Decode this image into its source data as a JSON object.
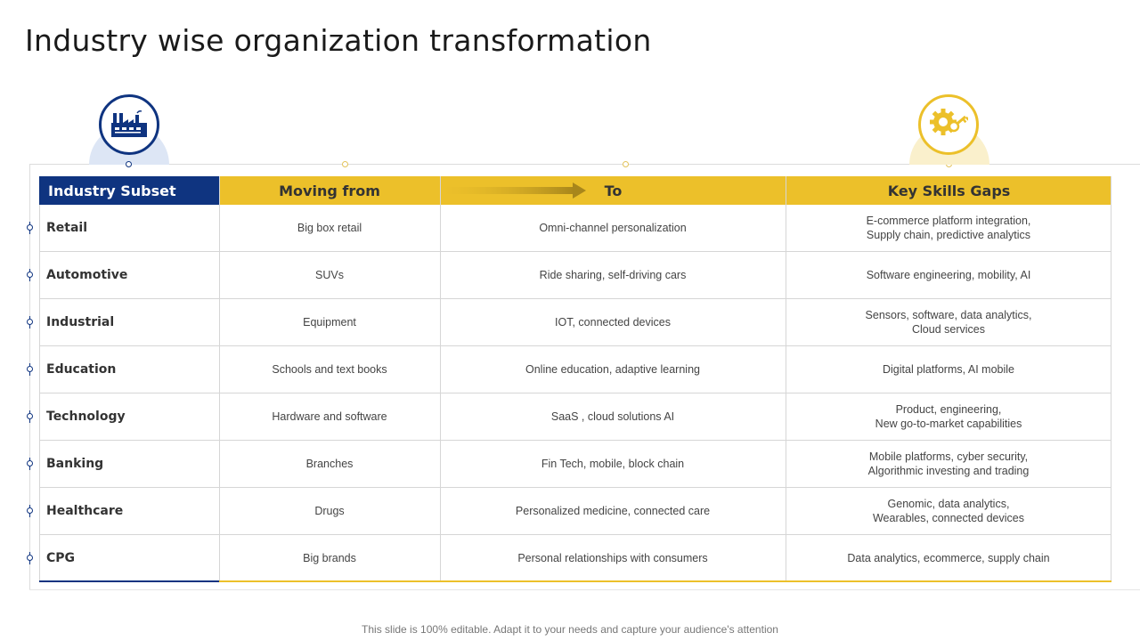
{
  "title": "Industry wise organization transformation",
  "headers": {
    "industry": "Industry Subset",
    "from": "Moving from",
    "to": "To",
    "skills": "Key Skills Gaps"
  },
  "rows": [
    {
      "industry": "Retail",
      "from": "Big box retail",
      "to": "Omni-channel personalization",
      "skills": "E-commerce platform integration,\nSupply chain, predictive analytics"
    },
    {
      "industry": "Automotive",
      "from": "SUVs",
      "to": "Ride sharing, self-driving cars",
      "skills": "Software engineering, mobility, AI"
    },
    {
      "industry": "Industrial",
      "from": "Equipment",
      "to": "IOT, connected devices",
      "skills": "Sensors, software, data analytics,\nCloud services"
    },
    {
      "industry": "Education",
      "from": "Schools and text books",
      "to": "Online education, adaptive learning",
      "skills": "Digital platforms, AI mobile"
    },
    {
      "industry": "Technology",
      "from": "Hardware and software",
      "to": "SaaS , cloud solutions AI",
      "skills": "Product, engineering,\nNew go-to-market capabilities"
    },
    {
      "industry": "Banking",
      "from": "Branches",
      "to": "Fin Tech, mobile, block chain",
      "skills": "Mobile platforms, cyber security,\nAlgorithmic investing and trading"
    },
    {
      "industry": "Healthcare",
      "from": "Drugs",
      "to": "Personalized medicine, connected care",
      "skills": "Genomic, data analytics,\nWearables, connected devices"
    },
    {
      "industry": "CPG",
      "from": "Big brands",
      "to": "Personal relationships with consumers",
      "skills": "Data analytics, ecommerce, supply chain"
    }
  ],
  "icons": {
    "left": "factory-icon",
    "right": "gear-key-icon"
  },
  "colors": {
    "blue": "#0f3480",
    "yellow": "#ecc02a"
  },
  "footer": "This slide is 100% editable. Adapt it to your needs and capture your audience's attention"
}
